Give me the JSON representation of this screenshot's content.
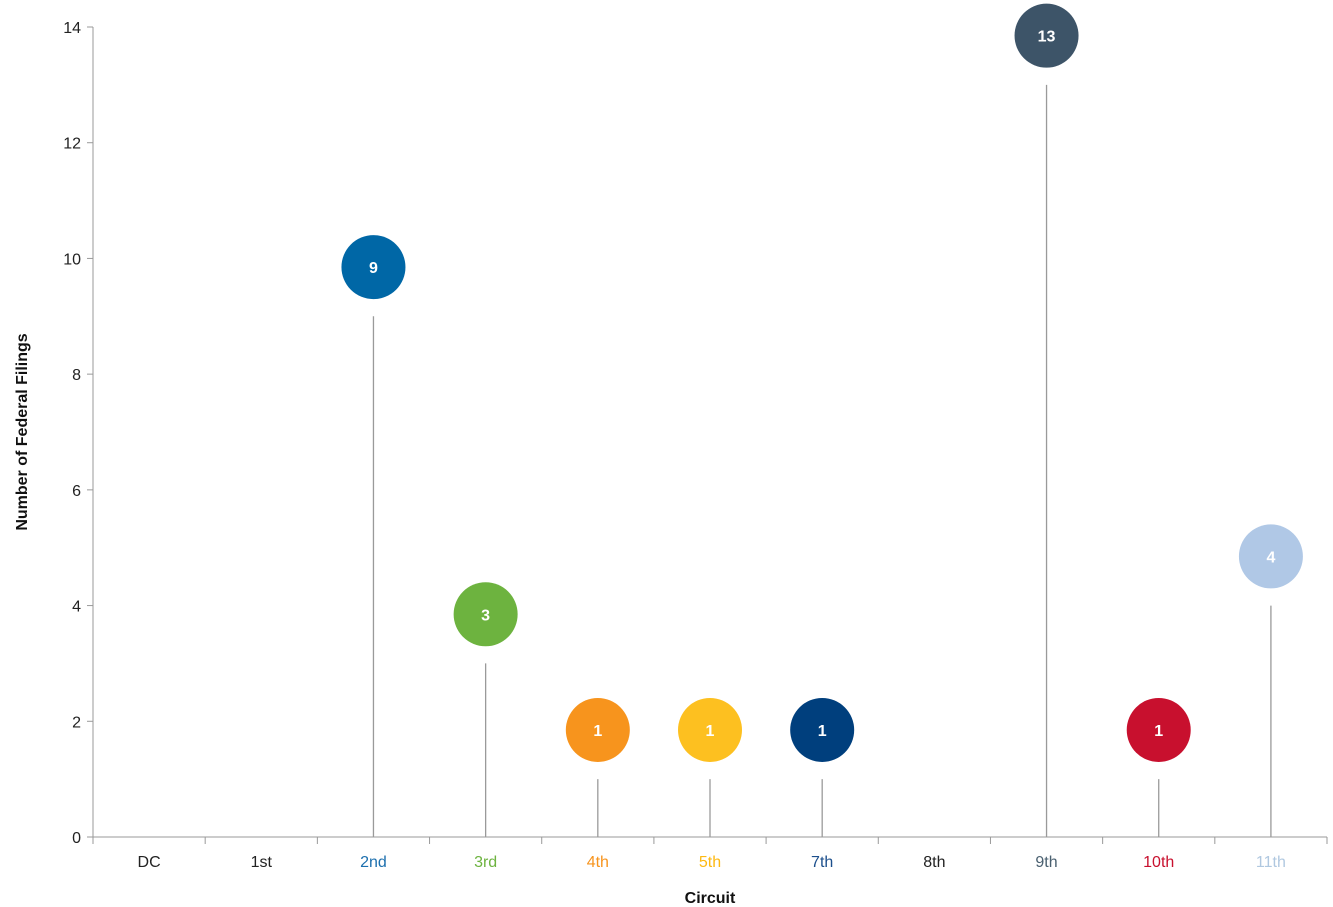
{
  "chart_data": {
    "type": "lollipop",
    "xlabel": "Circuit",
    "ylabel": "Number of Federal Filings",
    "ylim": [
      0,
      14
    ],
    "yticks": [
      0,
      2,
      4,
      6,
      8,
      10,
      12,
      14
    ],
    "grid": false,
    "categories": [
      "DC",
      "1st",
      "2nd",
      "3rd",
      "4th",
      "5th",
      "7th",
      "8th",
      "9th",
      "10th",
      "11th"
    ],
    "values": [
      0,
      0,
      9,
      3,
      1,
      1,
      1,
      0,
      13,
      1,
      4
    ],
    "category_colors": [
      "#222222",
      "#222222",
      "#1c6fae",
      "#6db33f",
      "#f7941d",
      "#fdb913",
      "#1c4f8c",
      "#222222",
      "#4a6070",
      "#c8102e",
      "#b0c8e0"
    ],
    "marker_colors": {
      "2nd": "#0067a6",
      "3rd": "#6db33f",
      "4th": "#f7941d",
      "5th": "#fdc020",
      "7th": "#003f7d",
      "9th": "#3d5468",
      "10th": "#c8102e",
      "11th": "#b0c8e6"
    }
  }
}
